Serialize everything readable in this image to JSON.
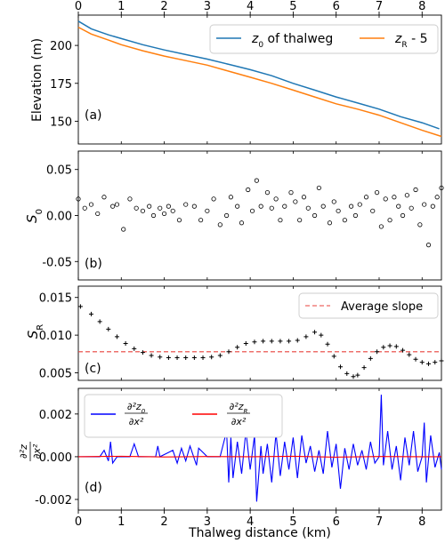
{
  "figure": {
    "top_axis_ticks": [
      "0",
      "1",
      "2",
      "3",
      "4",
      "5",
      "6",
      "7",
      "8"
    ]
  },
  "chart_data": [
    {
      "panel": "(a)",
      "type": "line",
      "ylabel": "Elevation (m)",
      "ylim": [
        135,
        220
      ],
      "xlim": [
        0,
        8.45
      ],
      "yticks": [
        "150",
        "175",
        "200"
      ],
      "legend": {
        "placement": "top-right",
        "ncol": 2
      },
      "series": [
        {
          "name": "z0 of thalweg",
          "color": "#1f77b4",
          "x": [
            0,
            0.3,
            0.7,
            1.0,
            1.5,
            2.0,
            2.5,
            3.0,
            3.5,
            4.0,
            4.5,
            5.0,
            5.5,
            6.0,
            6.5,
            7.0,
            7.5,
            8.0,
            8.4
          ],
          "y": [
            216,
            211,
            207,
            204.5,
            200.5,
            197,
            194,
            191,
            187.5,
            184,
            180,
            175,
            170.5,
            166,
            162,
            158,
            153,
            149,
            145
          ]
        },
        {
          "name": "zR - 5",
          "color": "#ff7f0e",
          "x": [
            0,
            0.3,
            0.7,
            1.0,
            1.5,
            2.0,
            2.5,
            3.0,
            3.5,
            4.0,
            4.5,
            5.0,
            5.5,
            6.0,
            6.5,
            7.0,
            7.5,
            8.0,
            8.45
          ],
          "y": [
            212,
            207.5,
            203.5,
            200.5,
            196.5,
            193,
            190,
            187,
            183,
            179,
            175,
            170.5,
            166,
            161.5,
            158,
            154,
            149,
            144,
            140
          ]
        }
      ]
    },
    {
      "panel": "(b)",
      "type": "scatter",
      "ylabel": "S0",
      "ylim": [
        -0.07,
        0.07
      ],
      "xlim": [
        0,
        8.45
      ],
      "yticks": [
        "-0.05",
        "0.00",
        "0.05"
      ],
      "series": [
        {
          "name": "",
          "marker": "open-circle",
          "x": [
            0.0,
            0.15,
            0.3,
            0.45,
            0.6,
            0.8,
            0.9,
            1.05,
            1.2,
            1.35,
            1.5,
            1.65,
            1.75,
            1.9,
            2.0,
            2.1,
            2.2,
            2.35,
            2.5,
            2.7,
            2.85,
            3.0,
            3.15,
            3.3,
            3.45,
            3.55,
            3.7,
            3.8,
            3.95,
            4.05,
            4.15,
            4.25,
            4.4,
            4.5,
            4.6,
            4.7,
            4.8,
            4.95,
            5.05,
            5.15,
            5.25,
            5.35,
            5.5,
            5.6,
            5.7,
            5.85,
            5.95,
            6.05,
            6.2,
            6.35,
            6.45,
            6.55,
            6.7,
            6.85,
            6.95,
            7.05,
            7.15,
            7.25,
            7.35,
            7.45,
            7.55,
            7.65,
            7.75,
            7.85,
            7.95,
            8.05,
            8.15,
            8.25,
            8.35,
            8.45
          ],
          "y": [
            0.018,
            0.008,
            0.012,
            0.002,
            0.02,
            0.01,
            0.012,
            -0.015,
            0.018,
            0.008,
            0.005,
            0.01,
            0.0,
            0.008,
            0.002,
            0.01,
            0.005,
            -0.005,
            0.012,
            0.01,
            -0.005,
            0.005,
            0.018,
            -0.01,
            0.0,
            0.02,
            0.01,
            -0.008,
            0.028,
            0.005,
            0.038,
            0.01,
            0.025,
            0.008,
            0.018,
            -0.005,
            0.01,
            0.025,
            0.015,
            -0.005,
            0.02,
            0.008,
            0.0,
            0.03,
            0.01,
            -0.008,
            0.015,
            0.005,
            -0.005,
            0.01,
            0.0,
            0.012,
            0.02,
            0.005,
            0.025,
            -0.012,
            0.018,
            -0.005,
            0.02,
            0.01,
            0.0,
            0.022,
            0.008,
            0.028,
            -0.01,
            0.012,
            -0.032,
            0.01,
            0.02,
            0.03
          ]
        }
      ]
    },
    {
      "panel": "(c)",
      "type": "scatter",
      "ylabel": "SR",
      "ylim": [
        0.004,
        0.0165
      ],
      "xlim": [
        0,
        8.45
      ],
      "yticks": [
        "0.005",
        "0.010",
        "0.015"
      ],
      "legend": {
        "placement": "top-right"
      },
      "series": [
        {
          "name": "",
          "marker": "plus",
          "x": [
            0.05,
            0.3,
            0.5,
            0.7,
            0.9,
            1.1,
            1.3,
            1.5,
            1.7,
            1.9,
            2.1,
            2.3,
            2.5,
            2.7,
            2.9,
            3.1,
            3.3,
            3.5,
            3.7,
            3.9,
            4.1,
            4.3,
            4.5,
            4.7,
            4.9,
            5.1,
            5.3,
            5.5,
            5.65,
            5.8,
            5.95,
            6.1,
            6.25,
            6.4,
            6.5,
            6.65,
            6.8,
            6.95,
            7.1,
            7.25,
            7.4,
            7.55,
            7.7,
            7.85,
            8.0,
            8.15,
            8.3,
            8.45
          ],
          "y": [
            0.0138,
            0.0128,
            0.0118,
            0.0108,
            0.0098,
            0.0089,
            0.0082,
            0.0077,
            0.0073,
            0.0071,
            0.007,
            0.007,
            0.007,
            0.007,
            0.007,
            0.0071,
            0.0073,
            0.0078,
            0.0084,
            0.0089,
            0.0091,
            0.0092,
            0.0092,
            0.0092,
            0.0092,
            0.0093,
            0.0098,
            0.0104,
            0.01,
            0.0088,
            0.0072,
            0.0058,
            0.0049,
            0.0045,
            0.0047,
            0.0057,
            0.0069,
            0.0078,
            0.0084,
            0.0086,
            0.0085,
            0.008,
            0.0074,
            0.0068,
            0.0064,
            0.0062,
            0.0064,
            0.0066
          ]
        },
        {
          "name": "Average slope",
          "type": "hline",
          "color": "#e8413b",
          "y": 0.0078
        }
      ]
    },
    {
      "panel": "(d)",
      "type": "line",
      "ylabel": "∂²z/∂x²",
      "xlabel": "Thalweg distance (km)",
      "ylim": [
        -0.0025,
        0.0032
      ],
      "xlim": [
        0,
        8.45
      ],
      "xticks": [
        "0",
        "1",
        "2",
        "3",
        "4",
        "5",
        "6",
        "7",
        "8"
      ],
      "yticks": [
        "-0.002",
        "0.000",
        "0.002"
      ],
      "legend": {
        "placement": "top-left",
        "ncol": 2
      },
      "series": [
        {
          "name": "∂²z0/∂x²",
          "color": "#0000ff",
          "x": [
            0,
            0.5,
            0.6,
            0.7,
            0.75,
            0.8,
            0.9,
            1.2,
            1.3,
            1.4,
            1.8,
            1.85,
            1.9,
            2.2,
            2.3,
            2.4,
            2.5,
            2.6,
            2.75,
            2.8,
            3.0,
            3.3,
            3.45,
            3.5,
            3.55,
            3.6,
            3.7,
            3.8,
            3.9,
            4.0,
            4.1,
            4.15,
            4.25,
            4.3,
            4.4,
            4.5,
            4.6,
            4.7,
            4.8,
            4.9,
            5.0,
            5.1,
            5.2,
            5.3,
            5.4,
            5.5,
            5.6,
            5.7,
            5.8,
            5.9,
            6.0,
            6.1,
            6.2,
            6.3,
            6.4,
            6.5,
            6.6,
            6.7,
            6.8,
            6.9,
            7.0,
            7.05,
            7.1,
            7.2,
            7.3,
            7.4,
            7.5,
            7.6,
            7.7,
            7.8,
            7.9,
            8.0,
            8.05,
            8.1,
            8.2,
            8.3,
            8.4,
            8.45
          ],
          "y": [
            0.0,
            0.0,
            0.0003,
            -0.0002,
            0.0007,
            -0.0003,
            0.0,
            0.0,
            0.0006,
            0.0,
            0.0,
            0.0005,
            0.0,
            0.0003,
            -0.0003,
            0.0004,
            -0.0002,
            0.0005,
            -0.0004,
            0.0004,
            0.0,
            0.0,
            0.0012,
            -0.0012,
            0.0009,
            -0.001,
            0.0007,
            -0.0008,
            0.0012,
            -0.0006,
            0.001,
            -0.0021,
            0.0005,
            -0.0008,
            0.0006,
            -0.0012,
            0.0011,
            -0.0009,
            0.0007,
            -0.0006,
            0.0009,
            -0.001,
            0.001,
            -0.0003,
            0.0005,
            -0.0007,
            0.0003,
            -0.0008,
            0.0012,
            -0.0005,
            0.0006,
            -0.0015,
            0.0004,
            -0.0006,
            0.0006,
            -0.0004,
            0.0003,
            -0.0006,
            0.0007,
            -0.0003,
            0.0,
            0.0029,
            -0.0004,
            0.0012,
            -0.0006,
            0.0005,
            -0.0011,
            0.0009,
            -0.0004,
            0.0012,
            -0.0007,
            0.0,
            0.0016,
            -0.0012,
            0.001,
            -0.0005,
            0.0002,
            -0.0006
          ]
        },
        {
          "name": "∂²zR/∂x²",
          "color": "#ff0000",
          "x": [
            0,
            1,
            2,
            3,
            4,
            5,
            6,
            7,
            8,
            8.45
          ],
          "y": [
            0.0,
            2e-05,
            -1e-05,
            1e-05,
            0.0,
            2e-05,
            -2e-05,
            1e-05,
            0.0,
            0.0
          ]
        }
      ]
    }
  ],
  "labels": {
    "a": {
      "legend_z0": "z",
      "legend_z0_sub": "0",
      "legend_z0_rest": " of thalweg",
      "legend_zr": "z",
      "legend_zr_sub": "R",
      "legend_zr_rest": " - 5"
    },
    "b": {
      "ylabel_main": "S",
      "ylabel_sub": "0"
    },
    "c": {
      "ylabel_main": "S",
      "ylabel_sub": "R",
      "legend_avg": "Average slope"
    },
    "d": {
      "ylabel_num": "∂²z",
      "ylabel_den": "∂x²",
      "leg1_num_main": "∂²z",
      "leg1_num_sub": "0",
      "leg1_den": "∂x²",
      "leg2_num_main": "∂²z",
      "leg2_num_sub": "R",
      "leg2_den": "∂x²"
    }
  }
}
